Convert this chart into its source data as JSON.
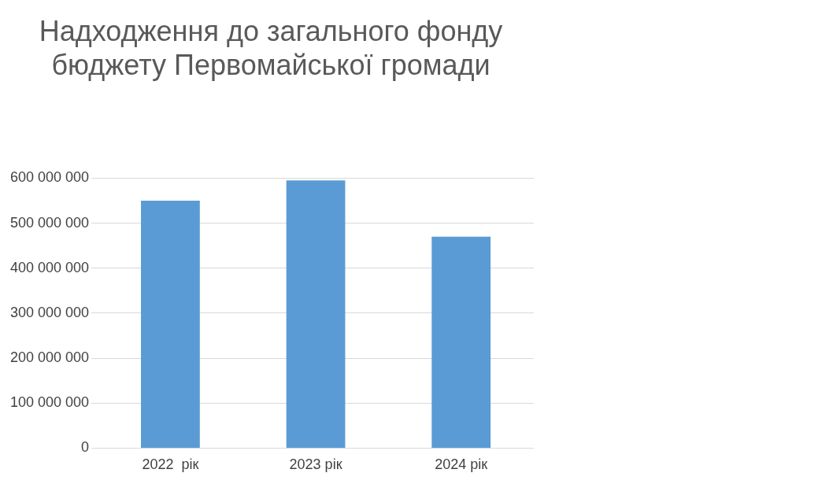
{
  "chart_data": {
    "type": "bar",
    "title": [
      "Надходження до загального фонду",
      "бюджету Первомайської громади"
    ],
    "categories": [
      "2022  рік",
      "2023 рік",
      "2024 рік"
    ],
    "values": [
      550000000,
      595000000,
      470000000
    ],
    "color": "#5b9bd5",
    "ylim": [
      0,
      600000000
    ],
    "yticks": [
      {
        "value": 0,
        "label": "0"
      },
      {
        "value": 100000000,
        "label": "100 000 000"
      },
      {
        "value": 200000000,
        "label": "200 000 000"
      },
      {
        "value": 300000000,
        "label": "300 000 000"
      },
      {
        "value": 400000000,
        "label": "400 000 000"
      },
      {
        "value": 500000000,
        "label": "500 000 000"
      },
      {
        "value": 600000000,
        "label": "600 000 000"
      }
    ],
    "grid": "y",
    "legend": false
  }
}
